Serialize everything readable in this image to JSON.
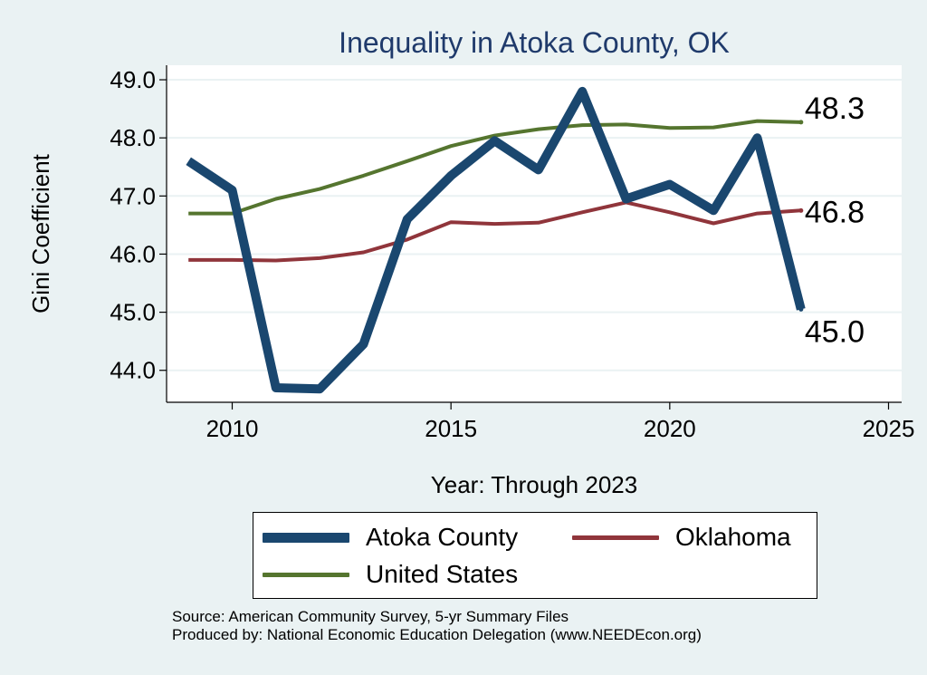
{
  "chart_data": {
    "type": "line",
    "title": "Inequality in Atoka County, OK",
    "xlabel": "Year: Through 2023",
    "ylabel": "Gini Coefficient",
    "xlim": [
      2008.5,
      2025.3
    ],
    "ylim": [
      43.45,
      49.25
    ],
    "xticks": [
      2010,
      2015,
      2020,
      2025
    ],
    "yticks": [
      44.0,
      45.0,
      46.0,
      47.0,
      48.0,
      49.0
    ],
    "ytick_labels": [
      "44.0",
      "45.0",
      "46.0",
      "47.0",
      "48.0",
      "49.0"
    ],
    "grid": true,
    "legend_position": "bottom",
    "x": [
      2009,
      2010,
      2011,
      2012,
      2013,
      2014,
      2015,
      2016,
      2017,
      2018,
      2019,
      2020,
      2021,
      2022,
      2023
    ],
    "series": [
      {
        "name": "Atoka County",
        "color": "#1a476f",
        "values": [
          47.6,
          47.1,
          43.7,
          43.68,
          44.45,
          46.6,
          47.35,
          47.95,
          47.45,
          48.8,
          46.95,
          47.2,
          46.75,
          48.0,
          45.05
        ],
        "end_label": "45.0"
      },
      {
        "name": "Oklahoma",
        "color": "#90353b",
        "values": [
          45.9,
          45.9,
          45.89,
          45.93,
          46.03,
          46.25,
          46.55,
          46.52,
          46.54,
          46.72,
          46.89,
          46.72,
          46.53,
          46.7,
          46.75
        ],
        "end_label": "46.8"
      },
      {
        "name": "United States",
        "color": "#55752f",
        "values": [
          46.7,
          46.7,
          46.95,
          47.12,
          47.35,
          47.6,
          47.86,
          48.04,
          48.15,
          48.22,
          48.23,
          48.17,
          48.18,
          48.29,
          48.27
        ],
        "end_label": "48.3"
      }
    ]
  },
  "source_line1": "Source: American Community Survey, 5-yr Summary Files",
  "source_line2": "Produced by: National Economic Education Delegation (www.NEEDEcon.org)"
}
